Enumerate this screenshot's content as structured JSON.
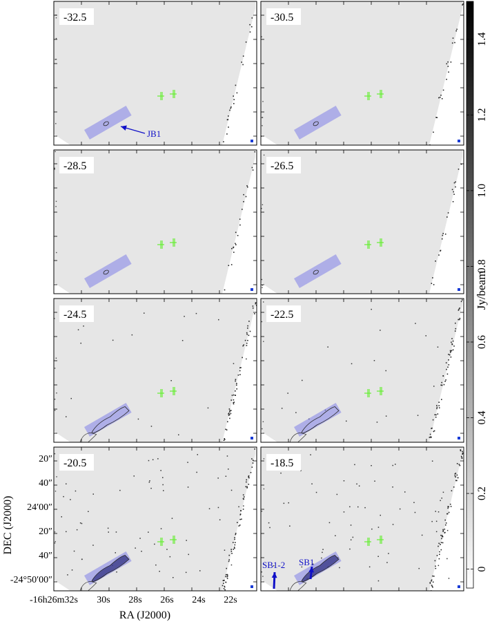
{
  "chart_data": {
    "type": "heatmap",
    "panel_labels": [
      "-32.5",
      "-30.5",
      "-28.5",
      "-26.5",
      "-24.5",
      "-22.5",
      "-20.5",
      "-18.5"
    ],
    "layout": "4 rows x 2 columns",
    "colorbar": {
      "label": "Jy/beam",
      "ticks": [
        "0",
        "0.2",
        "0.4",
        "0.6",
        "0.8",
        "1.0",
        "1.2",
        "1.4"
      ],
      "tick_values": [
        0,
        0.2,
        0.4,
        0.6,
        0.8,
        1.0,
        1.2,
        1.4
      ],
      "range": [
        -0.05,
        1.5
      ],
      "colormap": "grayscale, white to black"
    },
    "xlabel": "RA (J2000)",
    "ylabel": "DEC (J2000)",
    "x_ticks": [
      "-16h26m32s",
      "30s",
      "28s",
      "26s",
      "24s",
      "22s"
    ],
    "y_ticks": [
      "20″",
      "40″",
      "24′00″",
      "20″",
      "40″",
      "-24°50′00″"
    ],
    "annotations": [
      {
        "text": "JB1",
        "panel": "-32.5"
      },
      {
        "text": "SB1-2",
        "panel": "-18.5"
      },
      {
        "text": "SB1",
        "panel": "-18.5"
      }
    ],
    "colors": {
      "box": "#7f7fe8",
      "arrow": "#1010c8",
      "markers": "#66ee33",
      "map": "#e6e6e6"
    }
  }
}
